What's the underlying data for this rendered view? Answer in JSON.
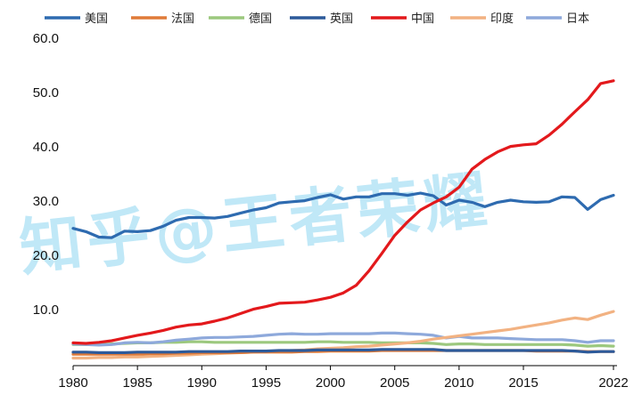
{
  "chart_data": {
    "type": "line",
    "title": "",
    "xlabel": "",
    "ylabel": "",
    "x": [
      1980,
      1981,
      1982,
      1983,
      1984,
      1985,
      1986,
      1987,
      1988,
      1989,
      1990,
      1991,
      1992,
      1993,
      1994,
      1995,
      1996,
      1997,
      1998,
      1999,
      2000,
      2001,
      2002,
      2003,
      2004,
      2005,
      2006,
      2007,
      2008,
      2009,
      2010,
      2011,
      2012,
      2013,
      2014,
      2015,
      2016,
      2017,
      2018,
      2019,
      2020,
      2021,
      2022
    ],
    "xticks": [
      "1980",
      "1985",
      "1990",
      "1995",
      "2000",
      "2005",
      "2010",
      "2015",
      "2022"
    ],
    "xtick_values": [
      1980,
      1985,
      1990,
      1995,
      2000,
      2005,
      2010,
      2015,
      2022
    ],
    "yticks": [
      "60.0",
      "50.0",
      "40.0",
      "30.0",
      "20.0",
      "10.0"
    ],
    "ytick_values": [
      60,
      50,
      40,
      30,
      20,
      10
    ],
    "ylim": [
      0,
      60
    ],
    "xlim": [
      1980,
      2022
    ],
    "grid": false,
    "legend_position": "top",
    "watermark": "知乎@王者荣耀",
    "series": [
      {
        "name": "美国",
        "color": "#2e6bb0",
        "values": [
          24.8,
          24.2,
          23.2,
          23.1,
          24.3,
          24.2,
          24.4,
          25.2,
          26.3,
          26.8,
          26.8,
          26.7,
          27.0,
          27.6,
          28.2,
          28.6,
          29.5,
          29.7,
          29.9,
          30.5,
          31.0,
          30.2,
          30.6,
          30.6,
          31.2,
          31.2,
          30.9,
          31.3,
          30.8,
          29.1,
          30.0,
          29.6,
          28.8,
          29.6,
          30.0,
          29.7,
          29.6,
          29.7,
          30.6,
          30.5,
          28.3,
          30.1,
          30.9
        ]
      },
      {
        "name": "法国",
        "color": "#e07b39",
        "values": [
          1.6,
          1.6,
          1.6,
          1.6,
          1.6,
          1.6,
          1.7,
          1.7,
          1.8,
          1.8,
          1.9,
          1.9,
          1.9,
          1.9,
          2.0,
          2.0,
          2.0,
          2.0,
          2.1,
          2.1,
          2.2,
          2.2,
          2.2,
          2.2,
          2.3,
          2.3,
          2.3,
          2.3,
          2.3,
          2.3,
          2.3,
          2.3,
          2.3,
          2.3,
          2.3,
          2.3,
          2.2,
          2.2,
          2.2,
          2.2,
          2.1,
          2.1,
          2.1
        ]
      },
      {
        "name": "德国",
        "color": "#9cc87e",
        "values": [
          3.4,
          3.4,
          3.4,
          3.5,
          3.6,
          3.7,
          3.7,
          3.8,
          3.8,
          3.9,
          3.9,
          3.8,
          3.8,
          3.8,
          3.8,
          3.8,
          3.8,
          3.8,
          3.8,
          3.9,
          3.9,
          3.8,
          3.8,
          3.8,
          3.7,
          3.7,
          3.7,
          3.7,
          3.6,
          3.4,
          3.5,
          3.5,
          3.4,
          3.4,
          3.4,
          3.4,
          3.4,
          3.4,
          3.4,
          3.3,
          3.1,
          3.2,
          3.1
        ]
      },
      {
        "name": "英国",
        "color": "#2d5a9a",
        "values": [
          2.0,
          2.0,
          1.9,
          1.9,
          1.9,
          2.0,
          2.0,
          2.0,
          2.0,
          2.1,
          2.1,
          2.1,
          2.1,
          2.2,
          2.2,
          2.2,
          2.3,
          2.3,
          2.3,
          2.4,
          2.4,
          2.4,
          2.4,
          2.4,
          2.5,
          2.5,
          2.5,
          2.5,
          2.5,
          2.3,
          2.3,
          2.3,
          2.3,
          2.3,
          2.3,
          2.3,
          2.3,
          2.3,
          2.3,
          2.2,
          2.0,
          2.1,
          2.1
        ]
      },
      {
        "name": "中国",
        "color": "#e3191c",
        "values": [
          3.7,
          3.6,
          3.8,
          4.1,
          4.6,
          5.1,
          5.5,
          6.0,
          6.6,
          7.0,
          7.2,
          7.7,
          8.3,
          9.1,
          9.9,
          10.4,
          11.0,
          11.1,
          11.2,
          11.6,
          12.1,
          12.9,
          14.3,
          17.0,
          20.2,
          23.5,
          26.0,
          28.2,
          29.5,
          30.6,
          32.4,
          35.7,
          37.5,
          38.9,
          39.9,
          40.2,
          40.4,
          42.0,
          44.0,
          46.3,
          48.5,
          51.5,
          52.0
        ]
      },
      {
        "name": "印度",
        "color": "#f2b282",
        "values": [
          0.9,
          0.9,
          1.0,
          1.0,
          1.1,
          1.1,
          1.2,
          1.3,
          1.4,
          1.5,
          1.6,
          1.7,
          1.8,
          1.9,
          2.0,
          2.1,
          2.2,
          2.3,
          2.4,
          2.6,
          2.7,
          2.8,
          3.0,
          3.1,
          3.3,
          3.5,
          3.7,
          4.0,
          4.4,
          4.7,
          5.0,
          5.3,
          5.6,
          5.9,
          6.2,
          6.6,
          7.0,
          7.4,
          7.9,
          8.3,
          8.0,
          8.8,
          9.5
        ]
      },
      {
        "name": "日本",
        "color": "#8ea9db",
        "values": [
          3.5,
          3.4,
          3.3,
          3.4,
          3.7,
          3.8,
          3.7,
          3.9,
          4.2,
          4.4,
          4.6,
          4.7,
          4.7,
          4.8,
          4.9,
          5.1,
          5.3,
          5.4,
          5.3,
          5.3,
          5.4,
          5.4,
          5.4,
          5.4,
          5.5,
          5.5,
          5.4,
          5.3,
          5.1,
          4.6,
          4.9,
          4.6,
          4.6,
          4.6,
          4.5,
          4.4,
          4.3,
          4.3,
          4.3,
          4.1,
          3.8,
          4.1,
          4.1
        ]
      }
    ]
  }
}
